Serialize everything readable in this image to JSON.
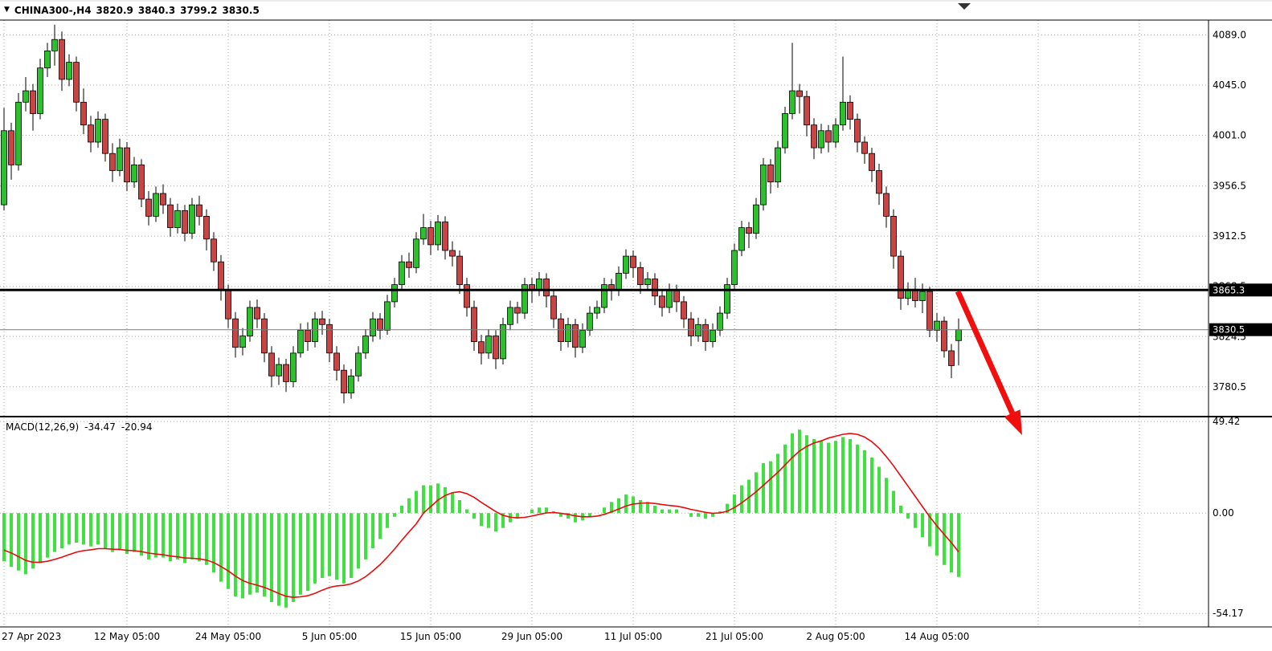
{
  "header": {
    "marker": "▼",
    "symbol": "CHINA300-,H4",
    "open": "3820.9",
    "high": "3840.3",
    "low": "3799.2",
    "close": "3830.5"
  },
  "colors": {
    "background": "#ffffff",
    "text": "#000000",
    "grid": "#ababab",
    "bull": "#2cc12c",
    "bear": "#c94545",
    "wick": "#000000",
    "macd_hist": "#3fe03f",
    "macd_signal": "#e60c0c",
    "trend_line": "#000000",
    "price_line": "#7a7a7a",
    "arrow": "#f10e0e",
    "badge_bg": "#000000",
    "badge_text": "#ffffff",
    "frame": "#000000"
  },
  "chart_data": {
    "type": "candlestick",
    "title": "CHINA300-,H4 3820.9 3840.3 3799.2 3830.5",
    "symbol": "CHINA300-",
    "timeframe": "H4",
    "legend_position": "top-left",
    "grid": true,
    "main": {
      "ylim": [
        3755,
        4102
      ],
      "ticks": {
        "values": [
          4089,
          4045,
          4001,
          3956.5,
          3912.5,
          3868.5,
          3824.5,
          3780.5
        ],
        "labels": [
          "4089.0",
          "4045.0",
          "4001.0",
          "3956.5",
          "3912.5",
          "3868.5",
          "3824.5",
          "3780.5"
        ]
      },
      "trendline_price": 3865.3,
      "trendline_label": "3865.3",
      "current_price": 3830.5,
      "current_price_label": "3830.5",
      "candles": [
        [
          3940,
          4025,
          3935,
          4005
        ],
        [
          4005,
          4012,
          3962,
          3975
        ],
        [
          3975,
          4038,
          3970,
          4030
        ],
        [
          4030,
          4052,
          4022,
          4040
        ],
        [
          4040,
          4046,
          4005,
          4020
        ],
        [
          4020,
          4068,
          4015,
          4060
        ],
        [
          4060,
          4082,
          4052,
          4075
        ],
        [
          4075,
          4098,
          4062,
          4085
        ],
        [
          4085,
          4092,
          4040,
          4050
        ],
        [
          4050,
          4072,
          4044,
          4065
        ],
        [
          4065,
          4070,
          4022,
          4030
        ],
        [
          4030,
          4042,
          4002,
          4010
        ],
        [
          4010,
          4018,
          3986,
          3995
        ],
        [
          3995,
          4022,
          3990,
          4015
        ],
        [
          4015,
          4020,
          3978,
          3985
        ],
        [
          3985,
          3994,
          3960,
          3970
        ],
        [
          3970,
          3998,
          3965,
          3990
        ],
        [
          3990,
          3995,
          3952,
          3960
        ],
        [
          3960,
          3982,
          3955,
          3975
        ],
        [
          3975,
          3980,
          3938,
          3945
        ],
        [
          3945,
          3952,
          3922,
          3930
        ],
        [
          3930,
          3956,
          3925,
          3950
        ],
        [
          3950,
          3958,
          3932,
          3940
        ],
        [
          3940,
          3946,
          3912,
          3920
        ],
        [
          3920,
          3941,
          3915,
          3935
        ],
        [
          3935,
          3940,
          3908,
          3915
        ],
        [
          3915,
          3946,
          3910,
          3940
        ],
        [
          3940,
          3948,
          3922,
          3930
        ],
        [
          3930,
          3936,
          3900,
          3910
        ],
        [
          3910,
          3916,
          3882,
          3890
        ],
        [
          3890,
          3896,
          3856,
          3865
        ],
        [
          3865,
          3870,
          3832,
          3840
        ],
        [
          3840,
          3846,
          3806,
          3815
        ],
        [
          3815,
          3832,
          3808,
          3825
        ],
        [
          3825,
          3856,
          3820,
          3850
        ],
        [
          3850,
          3857,
          3832,
          3840
        ],
        [
          3840,
          3845,
          3802,
          3810
        ],
        [
          3810,
          3816,
          3780,
          3790
        ],
        [
          3790,
          3806,
          3782,
          3800
        ],
        [
          3800,
          3805,
          3776,
          3785
        ],
        [
          3785,
          3816,
          3780,
          3810
        ],
        [
          3810,
          3836,
          3806,
          3830
        ],
        [
          3830,
          3837,
          3812,
          3820
        ],
        [
          3820,
          3846,
          3815,
          3840
        ],
        [
          3840,
          3847,
          3826,
          3835
        ],
        [
          3835,
          3840,
          3802,
          3810
        ],
        [
          3810,
          3816,
          3786,
          3795
        ],
        [
          3795,
          3800,
          3766,
          3775
        ],
        [
          3775,
          3796,
          3770,
          3790
        ],
        [
          3790,
          3816,
          3785,
          3810
        ],
        [
          3810,
          3831,
          3805,
          3825
        ],
        [
          3825,
          3846,
          3820,
          3840
        ],
        [
          3840,
          3845,
          3822,
          3830
        ],
        [
          3830,
          3861,
          3826,
          3855
        ],
        [
          3855,
          3876,
          3850,
          3870
        ],
        [
          3870,
          3896,
          3865,
          3890
        ],
        [
          3890,
          3898,
          3876,
          3885
        ],
        [
          3885,
          3916,
          3880,
          3910
        ],
        [
          3910,
          3932,
          3905,
          3920
        ],
        [
          3920,
          3926,
          3896,
          3905
        ],
        [
          3905,
          3931,
          3900,
          3925
        ],
        [
          3925,
          3930,
          3892,
          3900
        ],
        [
          3900,
          3908,
          3886,
          3895
        ],
        [
          3895,
          3900,
          3862,
          3870
        ],
        [
          3870,
          3876,
          3842,
          3850
        ],
        [
          3850,
          3856,
          3812,
          3820
        ],
        [
          3820,
          3826,
          3800,
          3810
        ],
        [
          3810,
          3831,
          3805,
          3825
        ],
        [
          3825,
          3830,
          3796,
          3805
        ],
        [
          3805,
          3841,
          3800,
          3835
        ],
        [
          3835,
          3856,
          3830,
          3850
        ],
        [
          3850,
          3855,
          3836,
          3845
        ],
        [
          3845,
          3876,
          3840,
          3870
        ],
        [
          3870,
          3876,
          3854,
          3865
        ],
        [
          3865,
          3881,
          3860,
          3875
        ],
        [
          3875,
          3880,
          3850,
          3860
        ],
        [
          3860,
          3866,
          3832,
          3840
        ],
        [
          3840,
          3845,
          3812,
          3820
        ],
        [
          3820,
          3841,
          3815,
          3835
        ],
        [
          3835,
          3840,
          3806,
          3815
        ],
        [
          3815,
          3836,
          3810,
          3830
        ],
        [
          3830,
          3851,
          3825,
          3845
        ],
        [
          3845,
          3856,
          3840,
          3850
        ],
        [
          3850,
          3876,
          3845,
          3870
        ],
        [
          3870,
          3875,
          3856,
          3865
        ],
        [
          3865,
          3886,
          3860,
          3880
        ],
        [
          3880,
          3901,
          3875,
          3895
        ],
        [
          3895,
          3900,
          3876,
          3885
        ],
        [
          3885,
          3890,
          3862,
          3870
        ],
        [
          3870,
          3881,
          3865,
          3875
        ],
        [
          3875,
          3880,
          3852,
          3860
        ],
        [
          3860,
          3866,
          3842,
          3850
        ],
        [
          3850,
          3871,
          3845,
          3865
        ],
        [
          3865,
          3870,
          3846,
          3855
        ],
        [
          3855,
          3860,
          3832,
          3840
        ],
        [
          3840,
          3846,
          3816,
          3825
        ],
        [
          3825,
          3841,
          3820,
          3835
        ],
        [
          3835,
          3840,
          3812,
          3820
        ],
        [
          3820,
          3836,
          3815,
          3830
        ],
        [
          3830,
          3851,
          3825,
          3845
        ],
        [
          3845,
          3876,
          3840,
          3870
        ],
        [
          3870,
          3906,
          3865,
          3900
        ],
        [
          3900,
          3926,
          3895,
          3920
        ],
        [
          3920,
          3925,
          3902,
          3915
        ],
        [
          3915,
          3946,
          3910,
          3940
        ],
        [
          3940,
          3981,
          3935,
          3975
        ],
        [
          3975,
          3980,
          3950,
          3960
        ],
        [
          3960,
          3996,
          3955,
          3990
        ],
        [
          3990,
          4026,
          3985,
          4020
        ],
        [
          4020,
          4082,
          4015,
          4040
        ],
        [
          4040,
          4046,
          4020,
          4035
        ],
        [
          4035,
          4040,
          4000,
          4010
        ],
        [
          4010,
          4016,
          3980,
          3990
        ],
        [
          3990,
          4011,
          3985,
          4005
        ],
        [
          4005,
          4010,
          3986,
          3995
        ],
        [
          3995,
          4016,
          3990,
          4010
        ],
        [
          4010,
          4070,
          4005,
          4030
        ],
        [
          4030,
          4036,
          4006,
          4015
        ],
        [
          4015,
          4020,
          3986,
          3995
        ],
        [
          3995,
          4000,
          3976,
          3985
        ],
        [
          3985,
          3990,
          3960,
          3970
        ],
        [
          3970,
          3976,
          3940,
          3950
        ],
        [
          3950,
          3956,
          3920,
          3930
        ],
        [
          3930,
          3936,
          3884,
          3895
        ],
        [
          3895,
          3900,
          3848,
          3858
        ],
        [
          3858,
          3872,
          3852,
          3866
        ],
        [
          3866,
          3876,
          3850,
          3856
        ],
        [
          3856,
          3871,
          3845,
          3864
        ],
        [
          3864,
          3868,
          3824,
          3830
        ],
        [
          3830,
          3845,
          3820,
          3838
        ],
        [
          3838,
          3842,
          3806,
          3812
        ],
        [
          3812,
          3818,
          3788,
          3799
        ],
        [
          3820.9,
          3840.3,
          3799.2,
          3830.5
        ]
      ]
    },
    "macd": {
      "label": "MACD(12,26,9)",
      "main_value": "-34.47",
      "signal_value": "-20.94",
      "ylim": [
        -61,
        51.2
      ],
      "ticks": {
        "values": [
          49.42,
          0,
          -54.17
        ],
        "labels": [
          "49.42",
          "0.00",
          "-54.17"
        ]
      },
      "hist": [
        -26,
        -29,
        -31,
        -33,
        -30,
        -27,
        -24,
        -21,
        -19,
        -17,
        -16,
        -17,
        -18,
        -17,
        -19,
        -21,
        -20,
        -22,
        -21,
        -23,
        -25,
        -24,
        -24,
        -26,
        -25,
        -27,
        -25,
        -26,
        -28,
        -32,
        -37,
        -41,
        -45,
        -46,
        -44,
        -43,
        -45,
        -48,
        -50,
        -51,
        -48,
        -44,
        -42,
        -38,
        -35,
        -34,
        -36,
        -38,
        -35,
        -30,
        -25,
        -19,
        -14,
        -8,
        -2,
        4,
        8,
        12,
        15,
        15,
        16,
        14,
        11,
        7,
        2,
        -3,
        -7,
        -8,
        -10,
        -8,
        -5,
        -3,
        0,
        2,
        3,
        3,
        1,
        -2,
        -3,
        -5,
        -4,
        -2,
        0,
        3,
        6,
        8,
        10,
        9,
        7,
        6,
        4,
        2,
        2,
        2,
        0,
        -2,
        -2,
        -3,
        -2,
        1,
        5,
        10,
        15,
        18,
        22,
        27,
        28,
        32,
        37,
        43,
        45,
        42,
        40,
        39,
        38,
        39,
        41,
        40,
        37,
        34,
        30,
        25,
        19,
        12,
        4,
        -3,
        -8,
        -13,
        -18,
        -23,
        -28,
        -32,
        -34.47
      ],
      "signal": [
        -20,
        -21.5,
        -23.5,
        -25.5,
        -26.5,
        -26.5,
        -26,
        -25,
        -23.8,
        -22.4,
        -21.1,
        -20.3,
        -19.8,
        -19.2,
        -19.2,
        -19.5,
        -19.6,
        -20.1,
        -20.3,
        -20.8,
        -21.6,
        -22.1,
        -22.5,
        -23.2,
        -23.6,
        -24.2,
        -24.4,
        -24.7,
        -25.4,
        -26.7,
        -28.8,
        -31.2,
        -34,
        -36.4,
        -37.9,
        -38.9,
        -40.1,
        -41.7,
        -43.4,
        -44.9,
        -45.5,
        -45.2,
        -44.6,
        -43.3,
        -41.6,
        -40.1,
        -39.3,
        -39,
        -38.2,
        -36.6,
        -34.3,
        -31.2,
        -27.8,
        -23.8,
        -19.4,
        -14.7,
        -10.2,
        -5.8,
        0,
        3.5,
        7,
        9.5,
        11,
        11.5,
        10.5,
        8.5,
        5.8,
        3.3,
        0.8,
        -1.2,
        -2.2,
        -2.6,
        -2.3,
        -1.6,
        -0.7,
        0.1,
        0.3,
        -0.1,
        -0.7,
        -1.5,
        -2,
        -2,
        -1.6,
        -0.7,
        0.7,
        2.2,
        3.8,
        4.9,
        5.3,
        5.5,
        5.2,
        4.6,
        4.1,
        3.7,
        3,
        2,
        1.2,
        0.4,
        -0.1,
        0.1,
        1,
        3,
        5.5,
        8.5,
        11.5,
        15,
        18.5,
        22,
        26,
        30,
        33.5,
        36,
        37.8,
        39,
        40.5,
        41.5,
        42.5,
        43,
        42.5,
        41,
        38.5,
        35,
        30.5,
        25.5,
        20,
        14.5,
        9,
        3.5,
        -2,
        -7,
        -11.5,
        -16,
        -20.94
      ]
    },
    "x_labels": [
      {
        "i": 0,
        "label": "27 Apr 2023"
      },
      {
        "i": 17,
        "label": "12 May 05:00"
      },
      {
        "i": 31,
        "label": "24 May 05:00"
      },
      {
        "i": 45,
        "label": "5 Jun 05:00"
      },
      {
        "i": 59,
        "label": "15 Jun 05:00"
      },
      {
        "i": 73,
        "label": "29 Jun 05:00"
      },
      {
        "i": 87,
        "label": "11 Jul 05:00"
      },
      {
        "i": 101,
        "label": "21 Jul 05:00"
      },
      {
        "i": 115,
        "label": "2 Aug 05:00"
      },
      {
        "i": 129,
        "label": "14 Aug 05:00"
      }
    ],
    "grid_extra_indices": [
      143,
      157
    ],
    "annotations": [
      {
        "type": "hline",
        "price": 3865.3,
        "color": "#000000",
        "width": 3
      },
      {
        "type": "arrow",
        "direction": "down-right",
        "color": "#f10e0e"
      }
    ]
  }
}
